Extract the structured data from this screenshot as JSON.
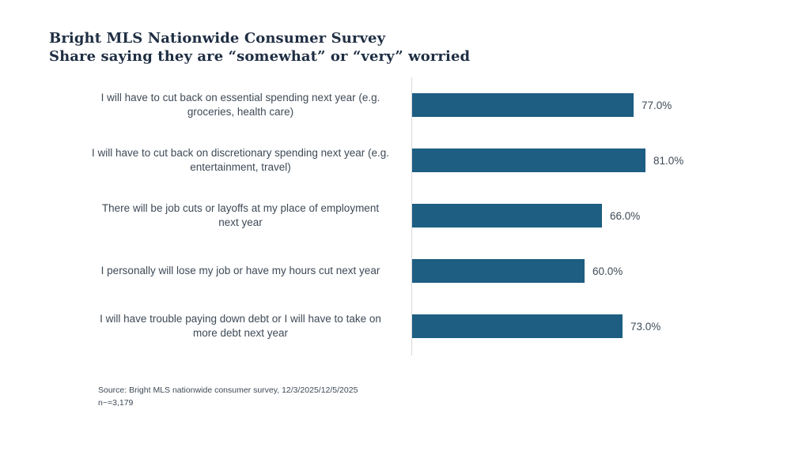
{
  "title": {
    "line1": "Bright MLS Nationwide Consumer Survey",
    "line2": "Share saying they are “somewhat” or “very” worried"
  },
  "chart_data": {
    "type": "bar",
    "orientation": "horizontal",
    "title": "Bright MLS Nationwide Consumer Survey — Share saying they are “somewhat” or “very” worried",
    "categories": [
      "I will have to cut back on essential spending next year (e.g.\ngroceries, health care)",
      "I will have to cut back on discretionary spending next year (e.g.\nentertainment, travel)",
      "There will be job cuts or layoffs at my place of employment\nnext year",
      "I personally will lose my job or have my hours cut next year",
      "I will have trouble paying down debt or I will have to take on\nmore debt next year"
    ],
    "values": [
      77.0,
      81.0,
      66.0,
      60.0,
      73.0
    ],
    "value_labels": [
      "77.0%",
      "81.0%",
      "66.0%",
      "60.0%",
      "73.0%"
    ],
    "xlabel": "",
    "ylabel": "",
    "xlim": [
      0,
      100
    ],
    "grid": false,
    "legend_position": "none",
    "bar_color": "#1d5e82",
    "axis_line_color": "#d9d9d9"
  },
  "source": {
    "line1": "Source: Bright MLS nationwide consumer survey, 12/3/2025/12/5/2025",
    "line2": "n~=3,179"
  },
  "colors": {
    "title_text": "#1f2e43",
    "body_text": "#3e4a57",
    "background": "#ffffff"
  }
}
